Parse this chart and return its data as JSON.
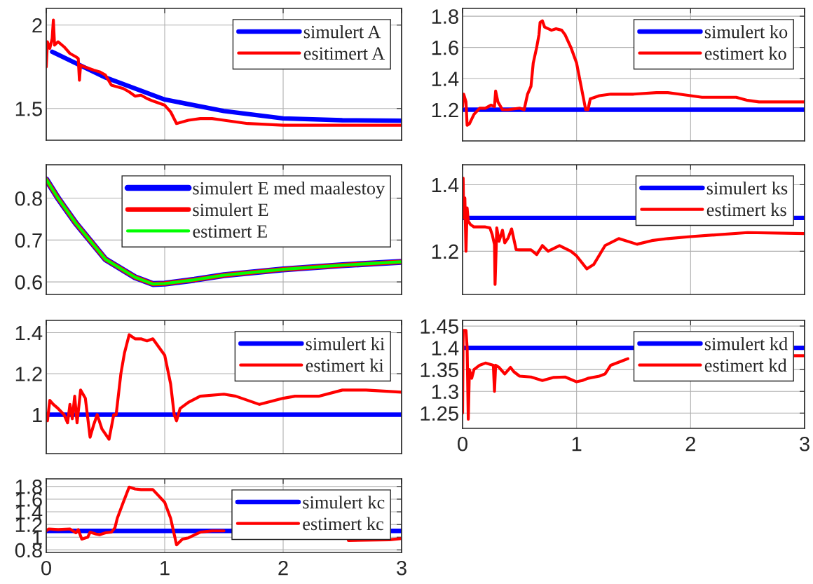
{
  "chart_data": [
    {
      "type": "line",
      "xlim": [
        0,
        3
      ],
      "xticks": [
        0,
        1,
        2,
        3
      ],
      "ylim": [
        1.31,
        2.1
      ],
      "yticks": [
        1.5,
        2
      ],
      "grid": true,
      "legend": "top right",
      "tick_labels": "y",
      "series": [
        {
          "name": "simulert A",
          "color": "#0000ff",
          "x": [
            0.05,
            0.5,
            1,
            1.5,
            2,
            2.5,
            3
          ],
          "values": [
            1.84,
            1.686,
            1.554,
            1.485,
            1.441,
            1.43,
            1.427
          ]
        },
        {
          "name": "esitimert A",
          "color": "#ff0000",
          "x": [
            0,
            0.01,
            0.03,
            0.05,
            0.06,
            0.07,
            0.1,
            0.15,
            0.2,
            0.25,
            0.27,
            0.28,
            0.29,
            0.32,
            0.4,
            0.45,
            0.5,
            0.55,
            0.65,
            0.7,
            0.75,
            0.8,
            0.85,
            0.9,
            1.0,
            1.05,
            1.1,
            1.2,
            1.3,
            1.4,
            1.5,
            1.7,
            2.0,
            2.5,
            3.0
          ],
          "values": [
            1.75,
            1.9,
            1.86,
            1.92,
            2.03,
            1.88,
            1.9,
            1.87,
            1.83,
            1.81,
            1.8,
            1.67,
            1.76,
            1.75,
            1.73,
            1.72,
            1.7,
            1.64,
            1.62,
            1.6,
            1.574,
            1.58,
            1.56,
            1.545,
            1.52,
            1.48,
            1.41,
            1.43,
            1.44,
            1.44,
            1.43,
            1.41,
            1.4,
            1.4,
            1.4
          ]
        }
      ]
    },
    {
      "type": "line",
      "xlim": [
        0,
        3
      ],
      "xticks": [
        0,
        1,
        2,
        3
      ],
      "ylim": [
        1.0,
        1.85
      ],
      "yticks": [
        1.2,
        1.4,
        1.6,
        1.8
      ],
      "grid": true,
      "legend": "top right",
      "tick_labels": "y",
      "series": [
        {
          "name": "simulert ko",
          "color": "#0000ff",
          "x": [
            0,
            3
          ],
          "values": [
            1.2,
            1.2
          ]
        },
        {
          "name": "estimert ko",
          "color": "#ff0000",
          "x": [
            0,
            0.01,
            0.03,
            0.04,
            0.06,
            0.1,
            0.15,
            0.2,
            0.25,
            0.28,
            0.29,
            0.31,
            0.35,
            0.4,
            0.5,
            0.54,
            0.57,
            0.6,
            0.62,
            0.65,
            0.67,
            0.68,
            0.7,
            0.72,
            0.75,
            0.78,
            0.82,
            0.87,
            0.9,
            0.95,
            1.0,
            1.04,
            1.08,
            1.1,
            1.12,
            1.2,
            1.3,
            1.5,
            1.7,
            1.8,
            1.9,
            2.0,
            2.1,
            2.4,
            2.5,
            2.6,
            2.8,
            3.0
          ],
          "values": [
            1.22,
            1.3,
            1.25,
            1.1,
            1.11,
            1.17,
            1.21,
            1.21,
            1.23,
            1.22,
            1.32,
            1.25,
            1.2,
            1.2,
            1.21,
            1.2,
            1.3,
            1.35,
            1.5,
            1.6,
            1.68,
            1.76,
            1.77,
            1.73,
            1.72,
            1.71,
            1.72,
            1.71,
            1.68,
            1.6,
            1.5,
            1.35,
            1.2,
            1.2,
            1.27,
            1.29,
            1.3,
            1.3,
            1.31,
            1.31,
            1.3,
            1.29,
            1.28,
            1.28,
            1.26,
            1.25,
            1.25,
            1.25
          ]
        }
      ]
    },
    {
      "type": "line",
      "xlim": [
        0,
        3
      ],
      "xticks": [
        0,
        1,
        2,
        3
      ],
      "ylim": [
        0.57,
        0.88
      ],
      "yticks": [
        0.6,
        0.7,
        0.8
      ],
      "grid": true,
      "legend": "top right",
      "tick_labels": "y",
      "series": [
        {
          "name": "simulert E med maalestoy",
          "color": "#0000ff",
          "x": [
            0,
            0.1,
            0.15,
            0.25,
            0.5,
            0.75,
            0.9,
            1,
            1.25,
            1.5,
            2,
            2.5,
            3
          ],
          "values": [
            0.845,
            0.8,
            0.78,
            0.74,
            0.654,
            0.611,
            0.595,
            0.596,
            0.605,
            0.616,
            0.63,
            0.64,
            0.648
          ]
        },
        {
          "name": "simulert E",
          "color": "#ff0000",
          "x": [
            0,
            0.1,
            0.15,
            0.25,
            0.5,
            0.75,
            0.9,
            1,
            1.25,
            1.5,
            2,
            2.5,
            3
          ],
          "values": [
            0.845,
            0.8,
            0.78,
            0.74,
            0.654,
            0.611,
            0.595,
            0.596,
            0.605,
            0.616,
            0.63,
            0.64,
            0.648
          ]
        },
        {
          "name": "estimert E",
          "color": "#00ff00",
          "x": [
            0,
            0.1,
            0.15,
            0.25,
            0.5,
            0.75,
            0.9,
            1,
            1.25,
            1.5,
            2,
            2.5,
            3
          ],
          "values": [
            0.845,
            0.8,
            0.78,
            0.74,
            0.654,
            0.611,
            0.595,
            0.596,
            0.605,
            0.616,
            0.63,
            0.64,
            0.648
          ]
        }
      ]
    },
    {
      "type": "line",
      "xlim": [
        0,
        3
      ],
      "xticks": [
        0,
        1,
        2,
        3
      ],
      "ylim": [
        1.07,
        1.46
      ],
      "yticks": [
        1.2,
        1.4
      ],
      "grid": true,
      "legend": "top right",
      "tick_labels": "y",
      "series": [
        {
          "name": "simulert ks",
          "color": "#0000ff",
          "x": [
            0,
            3
          ],
          "values": [
            1.3,
            1.3
          ]
        },
        {
          "name": "estimert ks",
          "color": "#ff0000",
          "x": [
            0,
            0.005,
            0.01,
            0.02,
            0.03,
            0.04,
            0.05,
            0.07,
            0.1,
            0.2,
            0.24,
            0.26,
            0.28,
            0.285,
            0.3,
            0.32,
            0.35,
            0.37,
            0.4,
            0.43,
            0.47,
            0.5,
            0.6,
            0.65,
            0.7,
            0.75,
            0.85,
            0.95,
            1.0,
            1.09,
            1.15,
            1.25,
            1.37,
            1.53,
            1.66,
            1.8,
            2.0,
            2.5,
            3.0
          ],
          "values": [
            1.3,
            1.42,
            1.3,
            1.36,
            1.2,
            1.33,
            1.29,
            1.28,
            1.273,
            1.273,
            1.27,
            1.25,
            1.22,
            1.1,
            1.27,
            1.23,
            1.263,
            1.225,
            1.24,
            1.267,
            1.205,
            1.204,
            1.204,
            1.19,
            1.217,
            1.2,
            1.217,
            1.2,
            1.186,
            1.147,
            1.16,
            1.217,
            1.238,
            1.221,
            1.232,
            1.238,
            1.244,
            1.256,
            1.253
          ]
        }
      ]
    },
    {
      "type": "line",
      "xlim": [
        0,
        3
      ],
      "xticks": [
        0,
        1,
        2,
        3
      ],
      "ylim": [
        0.81,
        1.46
      ],
      "yticks": [
        1,
        1.2,
        1.4
      ],
      "grid": true,
      "legend": "top right",
      "tick_labels": "y",
      "series": [
        {
          "name": "simulert ki",
          "color": "#0000ff",
          "x": [
            0,
            3
          ],
          "values": [
            1.0,
            1.0
          ]
        },
        {
          "name": "estimert ki",
          "color": "#ff0000",
          "x": [
            0,
            0.01,
            0.03,
            0.06,
            0.1,
            0.15,
            0.18,
            0.2,
            0.22,
            0.24,
            0.26,
            0.29,
            0.33,
            0.37,
            0.4,
            0.43,
            0.47,
            0.53,
            0.57,
            0.59,
            0.63,
            0.66,
            0.7,
            0.75,
            0.8,
            0.85,
            0.9,
            0.95,
            1.0,
            1.05,
            1.08,
            1.1,
            1.13,
            1.2,
            1.3,
            1.5,
            1.6,
            1.8,
            2.0,
            2.1,
            2.3,
            2.5,
            2.7,
            3.0
          ],
          "values": [
            1.0,
            0.97,
            1.07,
            1.05,
            1.03,
            1.0,
            0.96,
            1.05,
            0.98,
            1.09,
            0.96,
            1.12,
            1.08,
            0.89,
            0.95,
            1.0,
            0.93,
            0.88,
            1.0,
            1.0,
            1.2,
            1.3,
            1.39,
            1.37,
            1.37,
            1.36,
            1.37,
            1.33,
            1.29,
            1.15,
            1.0,
            0.97,
            1.03,
            1.06,
            1.09,
            1.1,
            1.09,
            1.05,
            1.08,
            1.09,
            1.09,
            1.12,
            1.12,
            1.11
          ]
        }
      ]
    },
    {
      "type": "line",
      "xlim": [
        0,
        3
      ],
      "xticks": [
        0,
        1,
        2,
        3
      ],
      "ylim": [
        1.215,
        1.463
      ],
      "yticks": [
        1.25,
        1.3,
        1.35,
        1.4,
        1.45
      ],
      "grid": true,
      "legend": "top right",
      "series": [
        {
          "name": "simulert kd",
          "color": "#0000ff",
          "x": [
            0,
            3
          ],
          "values": [
            1.4,
            1.4
          ]
        },
        {
          "name": "estimert kd",
          "color": "#ff0000",
          "x": [
            0,
            0.005,
            0.03,
            0.04,
            0.05,
            0.06,
            0.08,
            0.1,
            0.15,
            0.2,
            0.27,
            0.28,
            0.29,
            0.32,
            0.37,
            0.42,
            0.45,
            0.5,
            0.6,
            0.7,
            0.8,
            0.9,
            1.0,
            1.05,
            1.1,
            1.2,
            1.25,
            1.3,
            1.4,
            1.45,
            2.0,
            2.9,
            3.0
          ],
          "values": [
            1.25,
            1.44,
            1.44,
            1.4,
            1.236,
            1.35,
            1.33,
            1.35,
            1.36,
            1.365,
            1.36,
            1.3,
            1.36,
            1.355,
            1.34,
            1.355,
            1.345,
            1.335,
            1.333,
            1.325,
            1.332,
            1.333,
            1.322,
            1.325,
            1.33,
            1.335,
            1.34,
            1.36,
            1.37,
            1.375,
            null,
            1.382,
            1.382
          ]
        }
      ]
    },
    {
      "type": "line",
      "xlim": [
        0,
        3
      ],
      "xticks": [
        0,
        1,
        2,
        3
      ],
      "ylim": [
        0.76,
        1.92
      ],
      "yticks": [
        0.8,
        1,
        1.2,
        1.4,
        1.6,
        1.8
      ],
      "grid": true,
      "legend": "top right",
      "series": [
        {
          "name": "simulert kc",
          "color": "#0000ff",
          "x": [
            0,
            3
          ],
          "values": [
            1.1,
            1.1
          ]
        },
        {
          "name": "estimert kc",
          "color": "#ff0000",
          "x": [
            0,
            0.02,
            0.1,
            0.2,
            0.25,
            0.27,
            0.3,
            0.35,
            0.37,
            0.42,
            0.45,
            0.5,
            0.55,
            0.58,
            0.6,
            0.65,
            0.7,
            0.75,
            0.8,
            0.9,
            0.95,
            1.0,
            1.05,
            1.1,
            1.15,
            1.2,
            1.3,
            1.4,
            1.5,
            2.0,
            2.55,
            2.9,
            3.0
          ],
          "values": [
            1.1,
            1.13,
            1.12,
            1.13,
            1.07,
            1.12,
            0.97,
            1.0,
            1.08,
            1.05,
            1.04,
            1.07,
            1.08,
            1.15,
            1.3,
            1.55,
            1.79,
            1.76,
            1.75,
            1.75,
            1.65,
            1.55,
            1.3,
            0.88,
            0.97,
            0.99,
            1.08,
            1.1,
            1.1,
            null,
            0.95,
            0.96,
            0.98
          ]
        }
      ]
    }
  ]
}
